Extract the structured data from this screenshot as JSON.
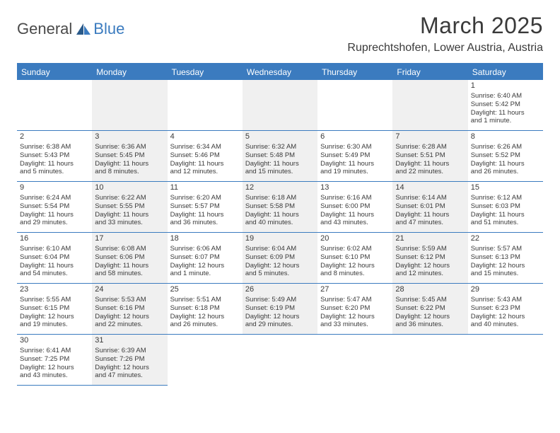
{
  "logo": {
    "text1": "General",
    "text2": "Blue"
  },
  "title": "March 2025",
  "location": "Ruprechtshofen, Lower Austria, Austria",
  "colors": {
    "header_bg": "#3b7bbf",
    "header_text": "#ffffff",
    "border": "#3b7bbf",
    "shade": "#f0f0f0",
    "text": "#3a3a3a",
    "bg": "#ffffff"
  },
  "dayNames": [
    "Sunday",
    "Monday",
    "Tuesday",
    "Wednesday",
    "Thursday",
    "Friday",
    "Saturday"
  ],
  "weeks": [
    [
      {
        "empty": true,
        "shade": false
      },
      {
        "empty": true,
        "shade": true
      },
      {
        "empty": true,
        "shade": false
      },
      {
        "empty": true,
        "shade": true
      },
      {
        "empty": true,
        "shade": false
      },
      {
        "empty": true,
        "shade": true
      },
      {
        "day": "1",
        "shade": false,
        "sunrise": "Sunrise: 6:40 AM",
        "sunset": "Sunset: 5:42 PM",
        "daylight1": "Daylight: 11 hours",
        "daylight2": "and 1 minute."
      }
    ],
    [
      {
        "day": "2",
        "shade": false,
        "sunrise": "Sunrise: 6:38 AM",
        "sunset": "Sunset: 5:43 PM",
        "daylight1": "Daylight: 11 hours",
        "daylight2": "and 5 minutes."
      },
      {
        "day": "3",
        "shade": true,
        "sunrise": "Sunrise: 6:36 AM",
        "sunset": "Sunset: 5:45 PM",
        "daylight1": "Daylight: 11 hours",
        "daylight2": "and 8 minutes."
      },
      {
        "day": "4",
        "shade": false,
        "sunrise": "Sunrise: 6:34 AM",
        "sunset": "Sunset: 5:46 PM",
        "daylight1": "Daylight: 11 hours",
        "daylight2": "and 12 minutes."
      },
      {
        "day": "5",
        "shade": true,
        "sunrise": "Sunrise: 6:32 AM",
        "sunset": "Sunset: 5:48 PM",
        "daylight1": "Daylight: 11 hours",
        "daylight2": "and 15 minutes."
      },
      {
        "day": "6",
        "shade": false,
        "sunrise": "Sunrise: 6:30 AM",
        "sunset": "Sunset: 5:49 PM",
        "daylight1": "Daylight: 11 hours",
        "daylight2": "and 19 minutes."
      },
      {
        "day": "7",
        "shade": true,
        "sunrise": "Sunrise: 6:28 AM",
        "sunset": "Sunset: 5:51 PM",
        "daylight1": "Daylight: 11 hours",
        "daylight2": "and 22 minutes."
      },
      {
        "day": "8",
        "shade": false,
        "sunrise": "Sunrise: 6:26 AM",
        "sunset": "Sunset: 5:52 PM",
        "daylight1": "Daylight: 11 hours",
        "daylight2": "and 26 minutes."
      }
    ],
    [
      {
        "day": "9",
        "shade": false,
        "sunrise": "Sunrise: 6:24 AM",
        "sunset": "Sunset: 5:54 PM",
        "daylight1": "Daylight: 11 hours",
        "daylight2": "and 29 minutes."
      },
      {
        "day": "10",
        "shade": true,
        "sunrise": "Sunrise: 6:22 AM",
        "sunset": "Sunset: 5:55 PM",
        "daylight1": "Daylight: 11 hours",
        "daylight2": "and 33 minutes."
      },
      {
        "day": "11",
        "shade": false,
        "sunrise": "Sunrise: 6:20 AM",
        "sunset": "Sunset: 5:57 PM",
        "daylight1": "Daylight: 11 hours",
        "daylight2": "and 36 minutes."
      },
      {
        "day": "12",
        "shade": true,
        "sunrise": "Sunrise: 6:18 AM",
        "sunset": "Sunset: 5:58 PM",
        "daylight1": "Daylight: 11 hours",
        "daylight2": "and 40 minutes."
      },
      {
        "day": "13",
        "shade": false,
        "sunrise": "Sunrise: 6:16 AM",
        "sunset": "Sunset: 6:00 PM",
        "daylight1": "Daylight: 11 hours",
        "daylight2": "and 43 minutes."
      },
      {
        "day": "14",
        "shade": true,
        "sunrise": "Sunrise: 6:14 AM",
        "sunset": "Sunset: 6:01 PM",
        "daylight1": "Daylight: 11 hours",
        "daylight2": "and 47 minutes."
      },
      {
        "day": "15",
        "shade": false,
        "sunrise": "Sunrise: 6:12 AM",
        "sunset": "Sunset: 6:03 PM",
        "daylight1": "Daylight: 11 hours",
        "daylight2": "and 51 minutes."
      }
    ],
    [
      {
        "day": "16",
        "shade": false,
        "sunrise": "Sunrise: 6:10 AM",
        "sunset": "Sunset: 6:04 PM",
        "daylight1": "Daylight: 11 hours",
        "daylight2": "and 54 minutes."
      },
      {
        "day": "17",
        "shade": true,
        "sunrise": "Sunrise: 6:08 AM",
        "sunset": "Sunset: 6:06 PM",
        "daylight1": "Daylight: 11 hours",
        "daylight2": "and 58 minutes."
      },
      {
        "day": "18",
        "shade": false,
        "sunrise": "Sunrise: 6:06 AM",
        "sunset": "Sunset: 6:07 PM",
        "daylight1": "Daylight: 12 hours",
        "daylight2": "and 1 minute."
      },
      {
        "day": "19",
        "shade": true,
        "sunrise": "Sunrise: 6:04 AM",
        "sunset": "Sunset: 6:09 PM",
        "daylight1": "Daylight: 12 hours",
        "daylight2": "and 5 minutes."
      },
      {
        "day": "20",
        "shade": false,
        "sunrise": "Sunrise: 6:02 AM",
        "sunset": "Sunset: 6:10 PM",
        "daylight1": "Daylight: 12 hours",
        "daylight2": "and 8 minutes."
      },
      {
        "day": "21",
        "shade": true,
        "sunrise": "Sunrise: 5:59 AM",
        "sunset": "Sunset: 6:12 PM",
        "daylight1": "Daylight: 12 hours",
        "daylight2": "and 12 minutes."
      },
      {
        "day": "22",
        "shade": false,
        "sunrise": "Sunrise: 5:57 AM",
        "sunset": "Sunset: 6:13 PM",
        "daylight1": "Daylight: 12 hours",
        "daylight2": "and 15 minutes."
      }
    ],
    [
      {
        "day": "23",
        "shade": false,
        "sunrise": "Sunrise: 5:55 AM",
        "sunset": "Sunset: 6:15 PM",
        "daylight1": "Daylight: 12 hours",
        "daylight2": "and 19 minutes."
      },
      {
        "day": "24",
        "shade": true,
        "sunrise": "Sunrise: 5:53 AM",
        "sunset": "Sunset: 6:16 PM",
        "daylight1": "Daylight: 12 hours",
        "daylight2": "and 22 minutes."
      },
      {
        "day": "25",
        "shade": false,
        "sunrise": "Sunrise: 5:51 AM",
        "sunset": "Sunset: 6:18 PM",
        "daylight1": "Daylight: 12 hours",
        "daylight2": "and 26 minutes."
      },
      {
        "day": "26",
        "shade": true,
        "sunrise": "Sunrise: 5:49 AM",
        "sunset": "Sunset: 6:19 PM",
        "daylight1": "Daylight: 12 hours",
        "daylight2": "and 29 minutes."
      },
      {
        "day": "27",
        "shade": false,
        "sunrise": "Sunrise: 5:47 AM",
        "sunset": "Sunset: 6:20 PM",
        "daylight1": "Daylight: 12 hours",
        "daylight2": "and 33 minutes."
      },
      {
        "day": "28",
        "shade": true,
        "sunrise": "Sunrise: 5:45 AM",
        "sunset": "Sunset: 6:22 PM",
        "daylight1": "Daylight: 12 hours",
        "daylight2": "and 36 minutes."
      },
      {
        "day": "29",
        "shade": false,
        "sunrise": "Sunrise: 5:43 AM",
        "sunset": "Sunset: 6:23 PM",
        "daylight1": "Daylight: 12 hours",
        "daylight2": "and 40 minutes."
      }
    ],
    [
      {
        "day": "30",
        "shade": false,
        "sunrise": "Sunrise: 6:41 AM",
        "sunset": "Sunset: 7:25 PM",
        "daylight1": "Daylight: 12 hours",
        "daylight2": "and 43 minutes."
      },
      {
        "day": "31",
        "shade": true,
        "sunrise": "Sunrise: 6:39 AM",
        "sunset": "Sunset: 7:26 PM",
        "daylight1": "Daylight: 12 hours",
        "daylight2": "and 47 minutes."
      },
      {
        "empty": true,
        "shade": false,
        "noborder": true
      },
      {
        "empty": true,
        "shade": false,
        "noborder": true
      },
      {
        "empty": true,
        "shade": false,
        "noborder": true
      },
      {
        "empty": true,
        "shade": false,
        "noborder": true
      },
      {
        "empty": true,
        "shade": false,
        "noborder": true
      }
    ]
  ]
}
